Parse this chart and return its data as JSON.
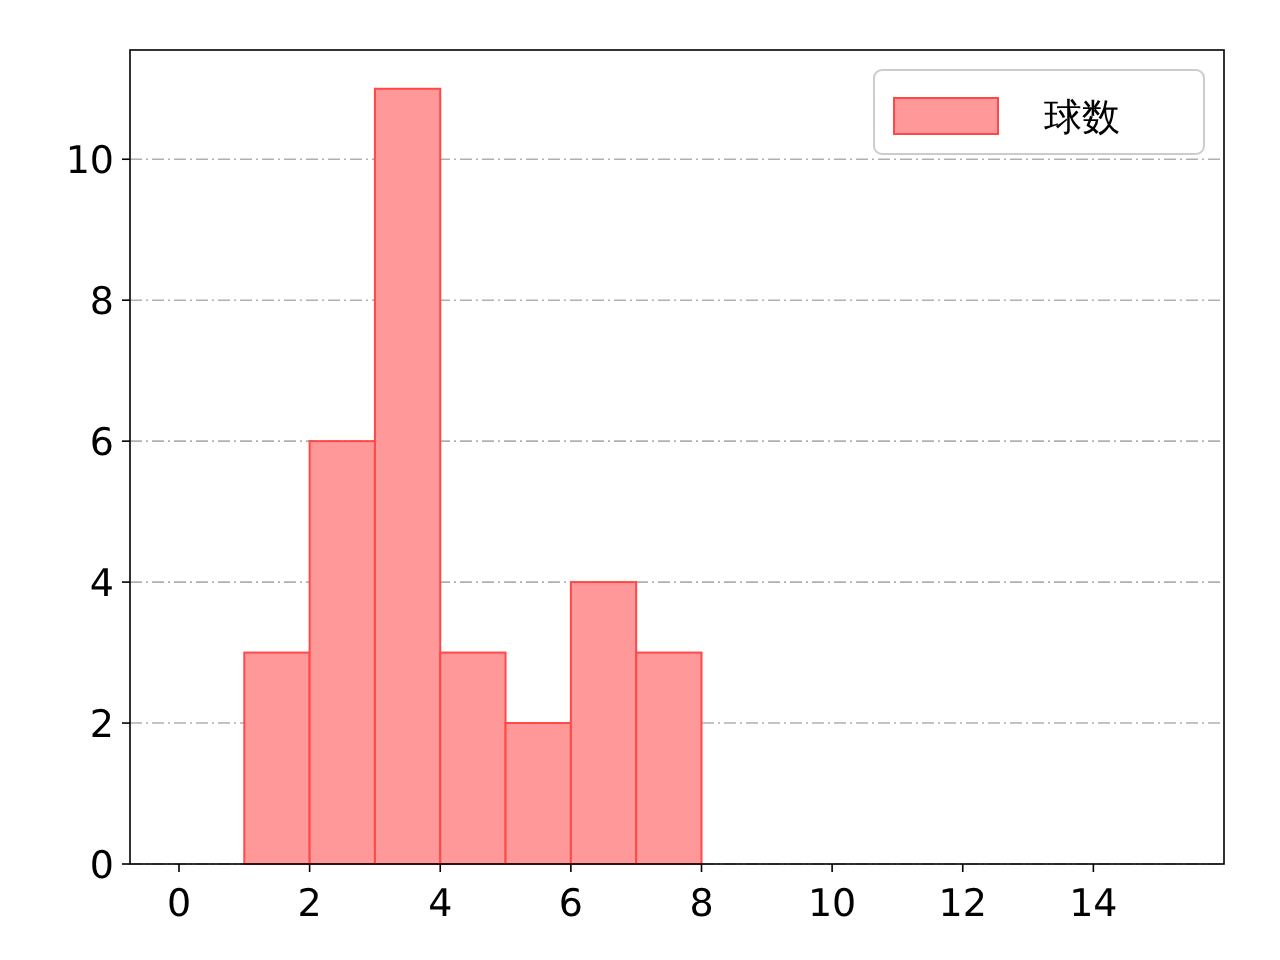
{
  "chart_data": {
    "type": "histogram",
    "bins": [
      1,
      2,
      3,
      4,
      5,
      6,
      7,
      8
    ],
    "series": [
      {
        "name": "球数",
        "color": "#ff9999",
        "values": [
          3,
          6,
          11,
          3,
          2,
          4,
          3
        ]
      }
    ],
    "xlim": [
      -0.75,
      16
    ],
    "ylim": [
      0,
      11.55
    ],
    "xticks": [
      0,
      2,
      4,
      6,
      8,
      10,
      12,
      14
    ],
    "yticks": [
      0,
      2,
      4,
      6,
      8,
      10
    ],
    "grid": "y",
    "legend": "top right"
  }
}
